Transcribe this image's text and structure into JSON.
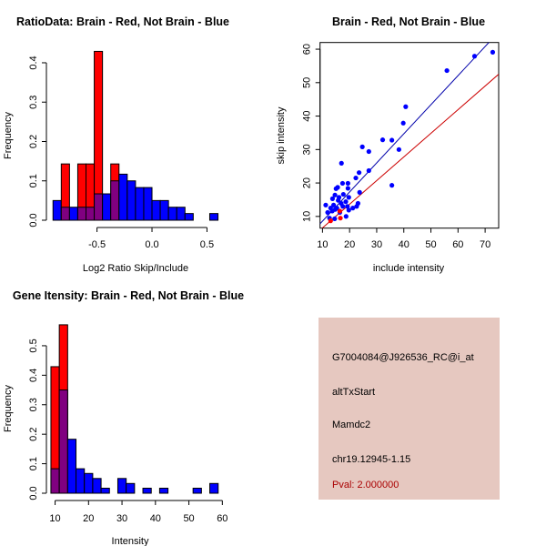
{
  "chart_data": [
    {
      "type": "bar",
      "subtype": "overlaid-histogram",
      "title": "RatioData: Brain - Red, Not Brain - Blue",
      "xlabel": "Log2 Ratio Skip/Include",
      "ylabel": "Frequency",
      "xlim": [
        -0.96,
        0.67
      ],
      "ylim": [
        0,
        0.43
      ],
      "bin_start": -0.9,
      "bin_width": 0.075,
      "xticks": [
        -0.5,
        0.0,
        0.5
      ],
      "xtick_labels": [
        "-0.5",
        "0.0",
        "0.5"
      ],
      "yticks": [
        0,
        0.1,
        0.2,
        0.3,
        0.4
      ],
      "ytick_labels": [
        "0.0",
        "0.1",
        "0.2",
        "0.3",
        "0.4"
      ],
      "series": [
        {
          "name": "Brain",
          "color": "#ff0000",
          "values": [
            0,
            0.143,
            0,
            0.143,
            0.143,
            0.429,
            0,
            0.143,
            0,
            0,
            0,
            0,
            0,
            0,
            0,
            0,
            0,
            0,
            0,
            0
          ]
        },
        {
          "name": "Not Brain",
          "color": "#0000ff",
          "values": [
            0.05,
            0.033,
            0.033,
            0.033,
            0.033,
            0.067,
            0.067,
            0.1,
            0.117,
            0.1,
            0.083,
            0.083,
            0.05,
            0.05,
            0.033,
            0.033,
            0.017,
            0,
            0,
            0.017
          ]
        }
      ],
      "overlap_color": "#800080"
    },
    {
      "type": "scatter",
      "title": "Brain - Red, Not Brain - Blue",
      "xlabel": "include intensity",
      "ylabel": "skip intensity",
      "xlim": [
        9.1,
        75
      ],
      "ylim": [
        6.5,
        62
      ],
      "xticks": [
        10,
        20,
        30,
        40,
        50,
        60,
        70
      ],
      "xtick_labels": [
        "10",
        "20",
        "30",
        "40",
        "50",
        "60",
        "70"
      ],
      "yticks": [
        10,
        20,
        30,
        40,
        50,
        60
      ],
      "ytick_labels": [
        "10",
        "20",
        "30",
        "40",
        "50",
        "60"
      ],
      "series": [
        {
          "name": "Not Brain",
          "color": "#0000ff",
          "points": [
            [
              72.8,
              59.1
            ],
            [
              66.1,
              57.9
            ],
            [
              55.9,
              53.6
            ],
            [
              40.7,
              42.8
            ],
            [
              39.8,
              37.9
            ],
            [
              38.2,
              30
            ],
            [
              35.6,
              32.8
            ],
            [
              32.2,
              32.9
            ],
            [
              24.7,
              30.8
            ],
            [
              27.1,
              29.4
            ],
            [
              27.1,
              23.7
            ],
            [
              23.5,
              23.1
            ],
            [
              22.3,
              21.5
            ],
            [
              23.7,
              17.2
            ],
            [
              35.6,
              19.3
            ],
            [
              17,
              25.9
            ],
            [
              17.4,
              19.9
            ],
            [
              19.4,
              19.9
            ],
            [
              19.4,
              18.4
            ],
            [
              15,
              18.3
            ],
            [
              15.6,
              18.7
            ],
            [
              14.6,
              16.4
            ],
            [
              17.7,
              16.6
            ],
            [
              13.7,
              15.3
            ],
            [
              11.2,
              13.4
            ],
            [
              11.9,
              11.2
            ],
            [
              12.6,
              9.5
            ],
            [
              14.5,
              9.3
            ],
            [
              18.7,
              10
            ],
            [
              16.4,
              11.2
            ],
            [
              19.7,
              11.9
            ],
            [
              21.2,
              12.5
            ],
            [
              22.6,
              13
            ],
            [
              23.1,
              13.9
            ],
            [
              19.7,
              15.7
            ],
            [
              18.6,
              14.4
            ],
            [
              15.8,
              14.8
            ],
            [
              14.1,
              13.4
            ],
            [
              15.3,
              12.5
            ],
            [
              17.5,
              13
            ],
            [
              13.6,
              11.6
            ],
            [
              19.2,
              13
            ],
            [
              16.9,
              13.9
            ],
            [
              14.7,
              12.1
            ],
            [
              16.1,
              15.7
            ],
            [
              13,
              12.5
            ]
          ]
        },
        {
          "name": "Brain",
          "color": "#ff0000",
          "points": [
            [
              13,
              8.7
            ],
            [
              16.6,
              9.5
            ],
            [
              16.4,
              11.6
            ]
          ]
        }
      ],
      "lines": [
        {
          "name": "Not Brain fit",
          "color": "#0000aa",
          "slope": 0.87,
          "intercept": -0.1
        },
        {
          "name": "Brain fit",
          "color": "#cc0000",
          "slope": 0.707,
          "intercept": -0.5
        }
      ]
    },
    {
      "type": "bar",
      "subtype": "overlaid-histogram",
      "title": "Gene Itensity: Brain - Red, Not Brain - Blue",
      "xlabel": "Intensity",
      "ylabel": "Frequency",
      "xlim": [
        7.4,
        61
      ],
      "ylim": [
        0,
        0.58
      ],
      "bin_start": 8.75,
      "bin_width": 2.5,
      "xticks": [
        10,
        20,
        30,
        40,
        50,
        60
      ],
      "xtick_labels": [
        "10",
        "20",
        "30",
        "40",
        "50",
        "60"
      ],
      "yticks": [
        0,
        0.1,
        0.2,
        0.3,
        0.4,
        0.5
      ],
      "ytick_labels": [
        "0.0",
        "0.1",
        "0.2",
        "0.3",
        "0.4",
        "0.5"
      ],
      "series": [
        {
          "name": "Brain",
          "color": "#ff0000",
          "values": [
            0.429,
            0.571,
            0,
            0,
            0,
            0,
            0,
            0,
            0,
            0,
            0,
            0,
            0,
            0,
            0,
            0,
            0,
            0,
            0,
            0
          ]
        },
        {
          "name": "Not Brain",
          "color": "#0000ff",
          "values": [
            0.083,
            0.35,
            0.183,
            0.083,
            0.067,
            0.05,
            0.017,
            0,
            0.05,
            0.033,
            0,
            0.017,
            0,
            0.017,
            0,
            0,
            0,
            0.017,
            0,
            0.033
          ]
        }
      ],
      "overlap_color": "#800080"
    }
  ],
  "info_panel": {
    "background": "#e6c8c0",
    "probe_id": "G7004084@J926536_RC@i_at",
    "event_type": "altTxStart",
    "gene": "Mamdc2",
    "location": "chr19.12945-1.15",
    "pval": "Pval: 2.000000",
    "pval_color": "#aa0000"
  }
}
